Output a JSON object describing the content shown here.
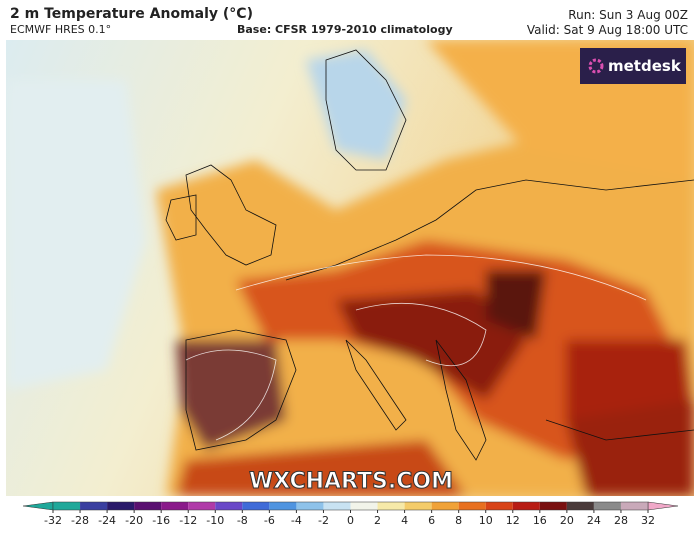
{
  "header": {
    "title": "2 m Temperature Anomaly (°C)",
    "model": "ECMWF HRES 0.1°",
    "base": "Base: CFSR 1979-2010 climatology",
    "run": "Run: Sun 3 Aug 00Z",
    "valid": "Valid: Sat 9 Aug 18:00 UTC"
  },
  "logo": "metdesk",
  "watermark": "WXCHARTS.COM",
  "colorbar": {
    "ticks": [
      -32,
      -28,
      -24,
      -20,
      -16,
      -12,
      -10,
      -8,
      -6,
      -4,
      -2,
      0,
      2,
      4,
      6,
      8,
      10,
      12,
      16,
      20,
      24,
      28,
      32
    ],
    "colors": [
      "#1fa89a",
      "#3a3fa0",
      "#2a1a6a",
      "#5a1070",
      "#8a1a8a",
      "#b03aa8",
      "#6a48c8",
      "#3f6bd8",
      "#4f94e0",
      "#8ec2ea",
      "#c8e2f2",
      "#f2f4ea",
      "#f6e9a8",
      "#f4cc6a",
      "#f0a238",
      "#e87020",
      "#d84418",
      "#b81c14",
      "#7a1010",
      "#4a3a3a",
      "#8a8a8a",
      "#c9a9b9",
      "#f0a8c8"
    ]
  }
}
